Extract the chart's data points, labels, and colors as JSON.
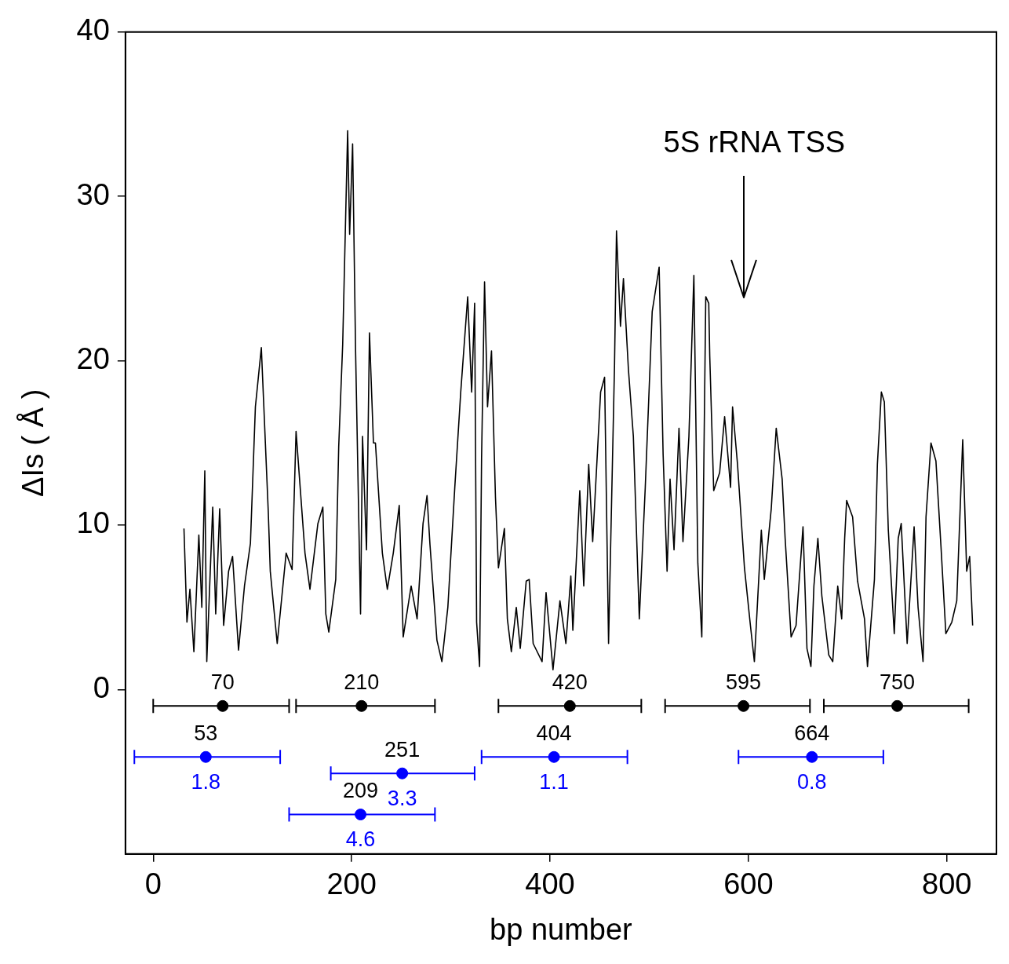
{
  "chart_data": {
    "type": "line",
    "xlabel": "bp number",
    "ylabel": "ΔIs ( Å )",
    "xlim": [
      -28,
      850
    ],
    "ylim": [
      -10,
      40
    ],
    "xticks": [
      0,
      200,
      400,
      600,
      800
    ],
    "yticks": [
      0,
      10,
      20,
      30,
      40
    ],
    "series": [
      {
        "color": "#000000",
        "x": [
          31,
          34,
          37,
          41,
          46,
          49,
          52,
          54,
          60,
          63,
          67,
          71,
          76,
          80,
          86,
          92,
          98,
          103,
          109,
          116,
          118,
          125,
          134,
          140,
          144,
          153,
          158,
          166,
          171,
          174,
          177,
          184,
          187,
          191,
          196,
          198,
          201,
          204,
          207,
          209,
          211,
          215,
          218,
          222,
          224,
          231,
          236,
          242,
          248,
          252,
          260,
          266,
          272,
          276,
          279,
          286,
          291,
          297,
          304,
          310,
          317,
          321,
          324,
          326,
          329,
          331,
          334,
          337,
          341,
          345,
          348,
          354,
          357,
          361,
          366,
          370,
          376,
          379,
          383,
          392,
          396,
          403,
          410,
          416,
          421,
          423,
          430,
          434,
          439,
          443,
          451,
          455,
          459,
          465,
          467,
          471,
          474,
          479,
          484,
          490,
          496,
          503,
          510,
          514,
          518,
          521,
          525,
          530,
          534,
          540,
          545,
          549,
          553,
          557,
          560,
          561,
          565,
          571,
          576,
          582,
          584,
          589,
          596,
          602,
          606,
          613,
          616,
          623,
          628,
          634,
          637,
          643,
          648,
          655,
          659,
          663,
          666,
          670,
          674,
          681,
          685,
          690,
          694,
          697,
          699,
          705,
          710,
          717,
          720,
          727,
          730,
          734,
          737,
          741,
          747,
          751,
          754,
          760,
          767,
          771,
          776,
          779,
          784,
          789,
          794,
          799,
          805,
          810,
          816,
          820,
          823,
          826
        ],
        "values": [
          9.8,
          4.1,
          6.1,
          2.3,
          9.4,
          5.0,
          13.3,
          1.7,
          11.1,
          4.6,
          11.0,
          3.9,
          7.2,
          8.1,
          2.4,
          6.3,
          8.9,
          17.2,
          20.8,
          10.8,
          7.2,
          2.8,
          8.3,
          7.3,
          15.7,
          8.3,
          6.1,
          10.1,
          11.1,
          4.6,
          3.5,
          6.7,
          14.8,
          21.0,
          34.0,
          27.7,
          33.2,
          20.6,
          11.0,
          4.6,
          15.4,
          8.5,
          21.7,
          15.0,
          15.0,
          8.3,
          6.1,
          8.3,
          11.2,
          3.2,
          6.3,
          4.3,
          10.1,
          11.8,
          8.8,
          3.0,
          1.7,
          5.0,
          12.3,
          18.1,
          23.9,
          18.1,
          23.5,
          4.1,
          1.4,
          14.1,
          24.8,
          17.2,
          20.6,
          11.7,
          7.4,
          9.8,
          4.3,
          2.3,
          5.0,
          2.5,
          6.6,
          6.7,
          2.8,
          1.7,
          5.9,
          1.2,
          5.4,
          2.8,
          6.9,
          3.6,
          12.1,
          6.3,
          13.7,
          9.0,
          18.1,
          19.0,
          2.8,
          19.7,
          27.9,
          22.1,
          25.0,
          19.5,
          15.4,
          4.3,
          12.3,
          23.0,
          25.7,
          14.3,
          7.2,
          12.8,
          8.5,
          15.9,
          9.0,
          15.4,
          25.2,
          7.7,
          3.2,
          23.9,
          23.5,
          20.3,
          12.1,
          13.2,
          16.6,
          12.3,
          17.2,
          13.7,
          7.4,
          3.9,
          1.7,
          9.7,
          6.7,
          11.0,
          15.9,
          12.8,
          9.2,
          3.2,
          3.9,
          9.9,
          2.5,
          1.4,
          6.3,
          9.2,
          5.7,
          2.1,
          1.7,
          6.3,
          4.3,
          9.2,
          11.5,
          10.5,
          6.6,
          4.3,
          1.4,
          6.7,
          13.7,
          18.1,
          17.5,
          9.7,
          3.4,
          9.2,
          10.1,
          2.8,
          9.9,
          5.0,
          1.7,
          10.5,
          15.0,
          13.9,
          8.8,
          3.4,
          4.1,
          5.4,
          15.2,
          7.2,
          8.1,
          3.9
        ]
      },
      {
        "type": "scatter",
        "marker": "circle",
        "color": "#000000",
        "x": [
          70,
          210,
          420,
          595,
          750
        ],
        "values": [
          -1,
          -1,
          -1,
          -1,
          -1
        ],
        "xerrors": [
          [
            0,
            137
          ],
          [
            144,
            284
          ],
          [
            348,
            492
          ],
          [
            516,
            662
          ],
          [
            676,
            822
          ]
        ]
      },
      {
        "type": "scatter",
        "marker": "circle",
        "color": "#0000ff",
        "x": [
          53,
          251,
          209,
          404,
          664
        ],
        "values": [
          -4.1,
          -5.1,
          -7.6,
          -4.1,
          -4.1
        ],
        "xerrors": [
          [
            -19,
            128
          ],
          [
            179,
            324
          ],
          [
            137,
            284
          ],
          [
            331,
            478
          ],
          [
            590,
            736
          ]
        ]
      }
    ],
    "annotations": [
      "5S rRNA TSS",
      {
        "text": "70",
        "x": 70,
        "y": -1
      },
      {
        "text": "210",
        "x": 210,
        "y": -1
      },
      {
        "text": "420",
        "x": 420,
        "y": -1
      },
      {
        "text": "595",
        "x": 595,
        "y": -1
      },
      {
        "text": "750",
        "x": 750,
        "y": -1
      },
      {
        "text": "53",
        "x": 53,
        "y": -4.1
      },
      {
        "text": "1.8",
        "x": 53,
        "y": -4.1
      },
      {
        "text": "251",
        "x": 251,
        "y": -5.1
      },
      {
        "text": "3.3",
        "x": 251,
        "y": -5.1
      },
      {
        "text": "209",
        "x": 209,
        "y": -7.6
      },
      {
        "text": "4.6",
        "x": 209,
        "y": -7.6
      },
      {
        "text": "404",
        "x": 404,
        "y": -4.1
      },
      {
        "text": "1.1",
        "x": 404,
        "y": -4.1
      },
      {
        "text": "664",
        "x": 664,
        "y": -4.1
      },
      {
        "text": "0.8",
        "x": 664,
        "y": -4.1
      }
    ]
  }
}
